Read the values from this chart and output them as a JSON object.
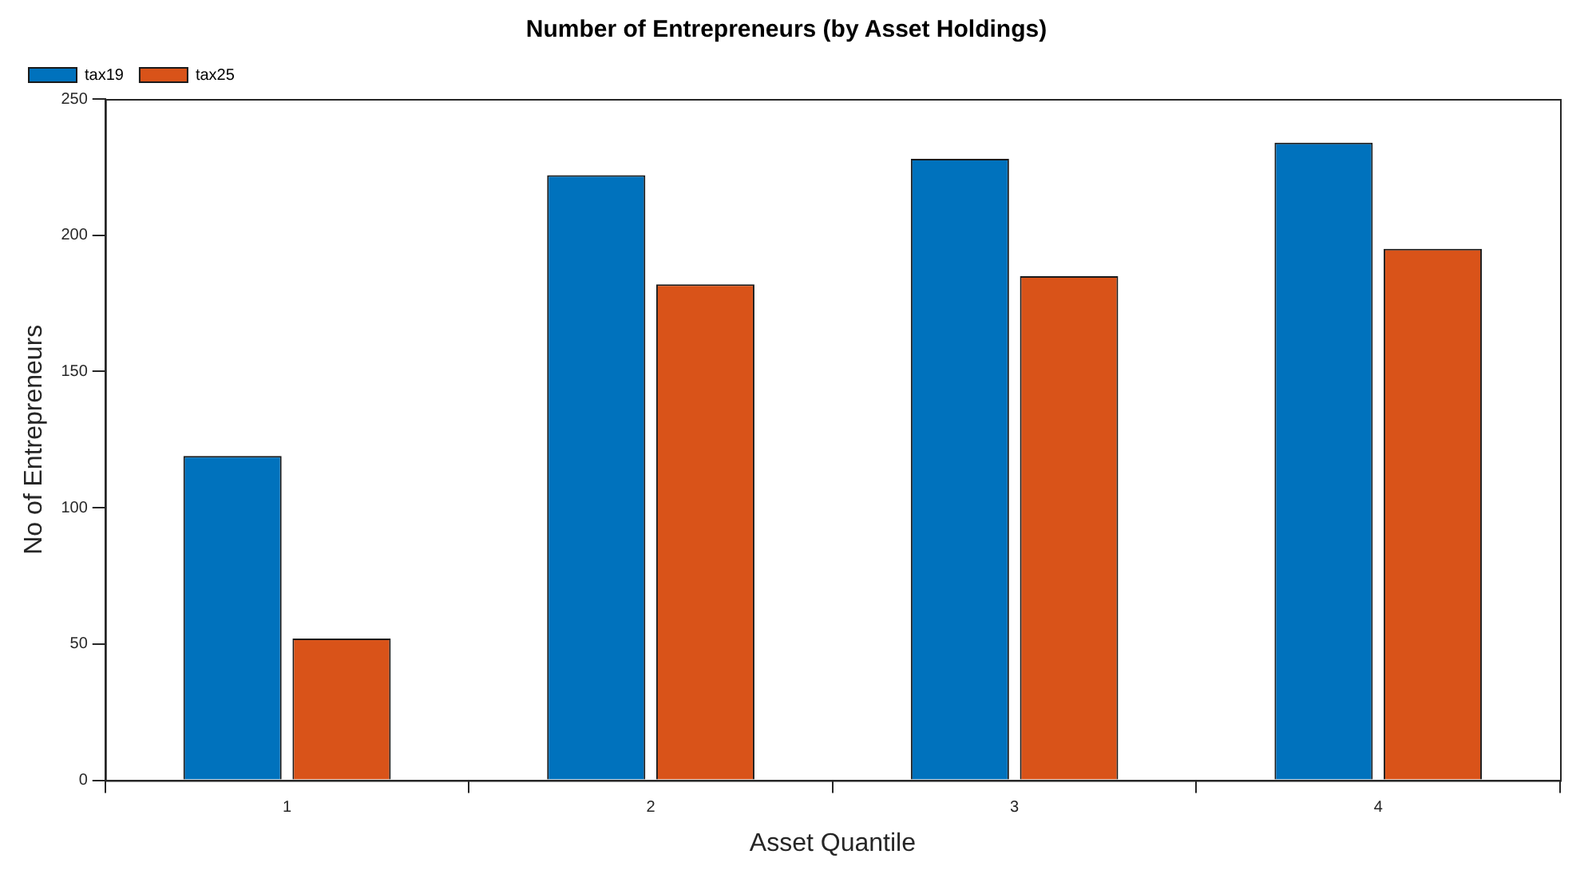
{
  "chart_data": {
    "type": "bar",
    "title": "Number of Entrepreneurs (by Asset Holdings)",
    "xlabel": "Asset Quantile",
    "ylabel": "No of Entrepreneurs",
    "categories": [
      "1",
      "2",
      "3",
      "4"
    ],
    "series": [
      {
        "name": "tax19",
        "color": "#0072bd",
        "values": [
          119,
          222,
          228,
          234
        ]
      },
      {
        "name": "tax25",
        "color": "#d95319",
        "values": [
          52,
          182,
          185,
          195
        ]
      }
    ],
    "ylim": [
      0,
      250
    ],
    "yticks": [
      0,
      50,
      100,
      150,
      200,
      250
    ],
    "grid": false,
    "legend": "top left"
  }
}
